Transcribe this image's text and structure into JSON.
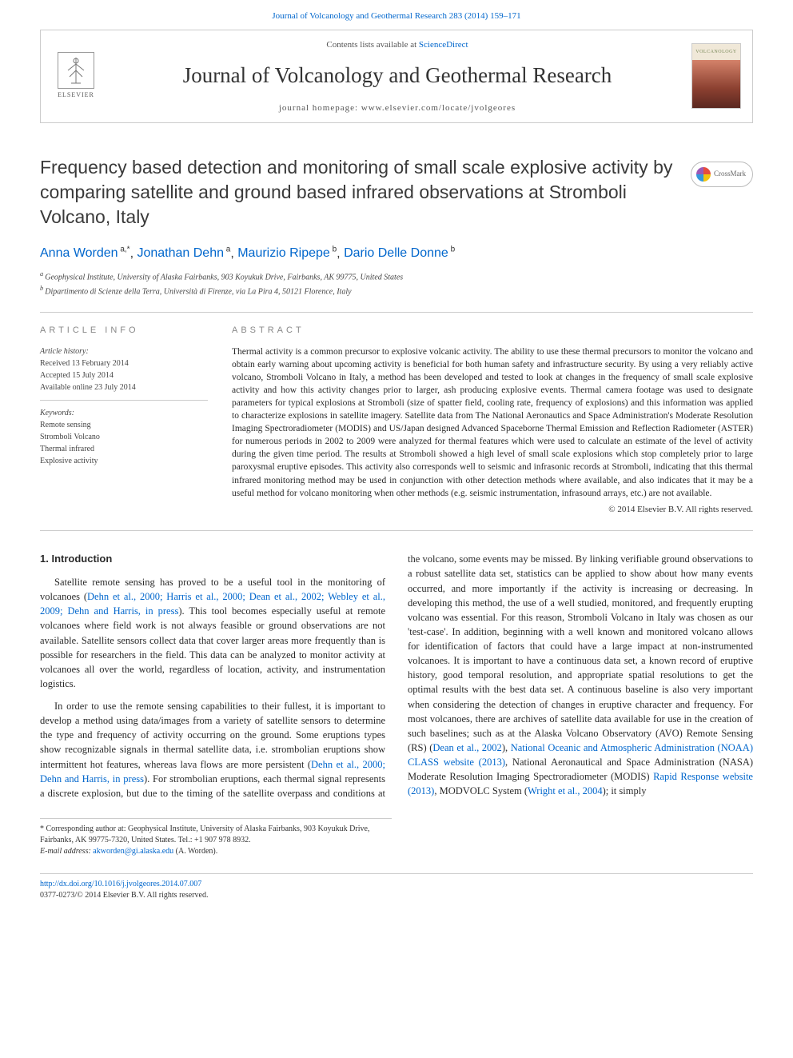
{
  "topLink": {
    "prefix": "",
    "journalName": "Journal of Volcanology and Geothermal Research 283 (2014) 159–171"
  },
  "headerBox": {
    "elsevierLabel": "ELSEVIER",
    "contentsPrefix": "Contents lists available at ",
    "contentsLink": "ScienceDirect",
    "journalTitle": "Journal of Volcanology and Geothermal Research",
    "homepageLabel": "journal homepage: www.elsevier.com/locate/jvolgeores",
    "coverText": "VOLCANOLOGY"
  },
  "crossmark": {
    "label": "CrossMark"
  },
  "article": {
    "title": "Frequency based detection and monitoring of small scale explosive activity by comparing satellite and ground based infrared observations at Stromboli Volcano, Italy",
    "authorsHtml": [
      {
        "name": "Anna Worden",
        "sup": "a,*",
        "link": true
      },
      {
        "name": "Jonathan Dehn",
        "sup": "a",
        "link": true
      },
      {
        "name": "Maurizio Ripepe",
        "sup": "b",
        "link": true
      },
      {
        "name": "Dario Delle Donne",
        "sup": "b",
        "link": true
      }
    ],
    "affiliations": [
      {
        "sup": "a",
        "text": "Geophysical Institute, University of Alaska Fairbanks, 903 Koyukuk Drive, Fairbanks, AK 99775, United States"
      },
      {
        "sup": "b",
        "text": "Dipartimento di Scienze della Terra, Università di Firenze, via La Pira 4, 50121 Florence, Italy"
      }
    ]
  },
  "articleInfo": {
    "sectionLabel": "article info",
    "historyLabel": "Article history:",
    "received": "Received 13 February 2014",
    "accepted": "Accepted 15 July 2014",
    "online": "Available online 23 July 2014",
    "keywordsLabel": "Keywords:",
    "keywords": [
      "Remote sensing",
      "Stromboli Volcano",
      "Thermal infrared",
      "Explosive activity"
    ]
  },
  "abstract": {
    "sectionLabel": "abstract",
    "text": "Thermal activity is a common precursor to explosive volcanic activity. The ability to use these thermal precursors to monitor the volcano and obtain early warning about upcoming activity is beneficial for both human safety and infrastructure security. By using a very reliably active volcano, Stromboli Volcano in Italy, a method has been developed and tested to look at changes in the frequency of small scale explosive activity and how this activity changes prior to larger, ash producing explosive events. Thermal camera footage was used to designate parameters for typical explosions at Stromboli (size of spatter field, cooling rate, frequency of explosions) and this information was applied to characterize explosions in satellite imagery. Satellite data from The National Aeronautics and Space Administration's Moderate Resolution Imaging Spectroradiometer (MODIS) and US/Japan designed Advanced Spaceborne Thermal Emission and Reflection Radiometer (ASTER) for numerous periods in 2002 to 2009 were analyzed for thermal features which were used to calculate an estimate of the level of activity during the given time period. The results at Stromboli showed a high level of small scale explosions which stop completely prior to large paroxysmal eruptive episodes. This activity also corresponds well to seismic and infrasonic records at Stromboli, indicating that this thermal infrared monitoring method may be used in conjunction with other detection methods where available, and also indicates that it may be a useful method for volcano monitoring when other methods (e.g. seismic instrumentation, infrasound arrays, etc.) are not available.",
    "copyright": "© 2014 Elsevier B.V. All rights reserved."
  },
  "introduction": {
    "heading": "1. Introduction",
    "para1_a": "Satellite remote sensing has proved to be a useful tool in the monitoring of volcanoes (",
    "para1_link1": "Dehn et al., 2000; Harris et al., 2000; Dean et al., 2002; Webley et al., 2009; Dehn and Harris, in press",
    "para1_b": "). This tool becomes especially useful at remote volcanoes where field work is not always feasible or ground observations are not available. Satellite sensors collect data that cover larger areas more frequently than is possible for researchers in the field. This data can be analyzed to monitor activity at volcanoes all over the world, regardless of location, activity, and instrumentation logistics.",
    "para2_a": "In order to use the remote sensing capabilities to their fullest, it is important to develop a method using data/images from a variety of satellite sensors to determine the type and frequency of activity occurring on the ground. Some eruptions types show recognizable signals in thermal satellite data, i.e. strombolian eruptions show intermittent hot features, whereas lava flows are more persistent (",
    "para2_link1": "Dehn et al., 2000; Dehn and Harris, in press",
    "para2_b": "). For strombolian eruptions, each",
    "para3_a": "thermal signal represents a discrete explosion, but due to the timing of the satellite overpass and conditions at the volcano, some events may be missed. By linking verifiable ground observations to a robust satellite data set, statistics can be applied to show about how many events occurred, and more importantly if the activity is increasing or decreasing. In developing this method, the use of a well studied, monitored, and frequently erupting volcano was essential. For this reason, Stromboli Volcano in Italy was chosen as our 'test-case'. In addition, beginning with a well known and monitored volcano allows for identification of factors that could have a large impact at non-instrumented volcanoes. It is important to have a continuous data set, a known record of eruptive history, good temporal resolution, and appropriate spatial resolutions to get the optimal results with the best data set. A continuous baseline is also very important when considering the detection of changes in eruptive character and frequency. For most volcanoes, there are archives of satellite data available for use in the creation of such baselines; such as at the Alaska Volcano Observatory (AVO) Remote Sensing (RS) (",
    "para3_link1": "Dean et al., 2002",
    "para3_b": "), ",
    "para3_link2": "National Oceanic and Atmospheric Administration (NOAA) CLASS website (2013)",
    "para3_c": ", National Aeronautical and Space Administration (NASA) Moderate Resolution Imaging Spectroradiometer (MODIS) ",
    "para3_link3": "Rapid Response website (2013)",
    "para3_d": ", MODVOLC System (",
    "para3_link4": "Wright et al., 2004",
    "para3_e": "); it simply"
  },
  "corrNote": {
    "star": "*",
    "text": "Corresponding author at: Geophysical Institute, University of Alaska Fairbanks, 903 Koyukuk Drive, Fairbanks, AK 99775-7320, United States. Tel.: +1 907 978 8932.",
    "emailLabel": "E-mail address:",
    "email": "akworden@gi.alaska.edu",
    "emailSuffix": "(A. Worden)."
  },
  "footer": {
    "doi": "http://dx.doi.org/10.1016/j.jvolgeores.2014.07.007",
    "issn": "0377-0273/© 2014 Elsevier B.V. All rights reserved."
  }
}
